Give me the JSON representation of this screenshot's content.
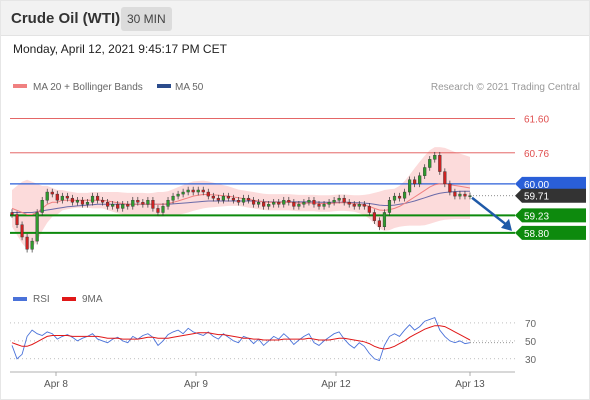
{
  "header": {
    "title": "Crude Oil (WTI)",
    "timeframe": "30 MIN",
    "datetime": "Monday, April 12, 2021 9:45:17 PM CET"
  },
  "legend": {
    "items": [
      {
        "label": "MA 20 + Bollinger Bands",
        "color": "#f08080"
      },
      {
        "label": "MA 50",
        "color": "#2b4c8c"
      }
    ],
    "credit": "Research © 2021 Trading Central"
  },
  "rsi_legend": {
    "items": [
      {
        "label": "RSI",
        "color": "#4a72d9"
      },
      {
        "label": "9MA",
        "color": "#e01818"
      }
    ]
  },
  "colors": {
    "resistance": "#e05050",
    "pivot": "#2a5fd8",
    "support": "#0d8a0d",
    "last_price_bg": "#333333",
    "bollinger_fill": "#fbd5d5",
    "ma20": "#f08080",
    "ma50": "#6a6aa8",
    "candle_up": "#2e9a2e",
    "candle_down": "#cc2222",
    "arrow": "#1f5aa8"
  },
  "chart_data": [
    {
      "type": "candlestick",
      "title": "Crude Oil (WTI)",
      "timeframe": "30 MIN",
      "x_ticks": [
        "Apr 8",
        "Apr 9",
        "Apr 12",
        "Apr 13"
      ],
      "ylim": [
        57.6,
        62.1
      ],
      "levels": [
        {
          "value": 61.6,
          "label": "61.60",
          "kind": "resistance"
        },
        {
          "value": 60.76,
          "label": "60.76",
          "kind": "resistance"
        },
        {
          "value": 60.0,
          "label": "60.00",
          "kind": "pivot"
        },
        {
          "value": 59.71,
          "label": "59.71",
          "kind": "last"
        },
        {
          "value": 59.23,
          "label": "59.23",
          "kind": "support"
        },
        {
          "value": 58.8,
          "label": "58.80",
          "kind": "support"
        }
      ],
      "forecast": {
        "from": 59.71,
        "to": 58.8,
        "direction": "down"
      },
      "closes": [
        59.25,
        59.0,
        58.7,
        58.4,
        58.6,
        59.3,
        59.6,
        59.8,
        59.75,
        59.6,
        59.7,
        59.65,
        59.55,
        59.6,
        59.5,
        59.55,
        59.7,
        59.6,
        59.55,
        59.45,
        59.5,
        59.4,
        59.5,
        59.45,
        59.6,
        59.55,
        59.5,
        59.6,
        59.4,
        59.3,
        59.45,
        59.6,
        59.7,
        59.75,
        59.8,
        59.85,
        59.8,
        59.85,
        59.8,
        59.7,
        59.65,
        59.6,
        59.7,
        59.65,
        59.6,
        59.55,
        59.65,
        59.6,
        59.5,
        59.55,
        59.45,
        59.5,
        59.55,
        59.5,
        59.6,
        59.55,
        59.45,
        59.5,
        59.55,
        59.6,
        59.5,
        59.45,
        59.5,
        59.55,
        59.6,
        59.65,
        59.55,
        59.5,
        59.45,
        59.5,
        59.45,
        59.3,
        59.1,
        58.95,
        59.3,
        59.6,
        59.7,
        59.65,
        59.8,
        60.1,
        60.0,
        60.2,
        60.4,
        60.6,
        60.7,
        60.3,
        60.0,
        59.8,
        59.7,
        59.75,
        59.7,
        59.71
      ],
      "ma20": [
        59.4,
        59.35,
        59.3,
        59.25,
        59.25,
        59.3,
        59.4,
        59.5,
        59.55,
        59.55,
        59.6,
        59.6,
        59.6,
        59.6,
        59.6,
        59.6,
        59.6,
        59.6,
        59.6,
        59.58,
        59.56,
        59.54,
        59.52,
        59.5,
        59.5,
        59.5,
        59.5,
        59.5,
        59.5,
        59.5,
        59.5,
        59.52,
        59.55,
        59.58,
        59.62,
        59.66,
        59.7,
        59.72,
        59.74,
        59.74,
        59.73,
        59.72,
        59.71,
        59.7,
        59.68,
        59.66,
        59.64,
        59.62,
        59.6,
        59.58,
        59.56,
        59.55,
        59.55,
        59.55,
        59.55,
        59.55,
        59.54,
        59.53,
        59.53,
        59.53,
        59.53,
        59.52,
        59.52,
        59.52,
        59.53,
        59.54,
        59.54,
        59.53,
        59.52,
        59.5,
        59.48,
        59.45,
        59.4,
        59.36,
        59.35,
        59.37,
        59.4,
        59.45,
        59.52,
        59.6,
        59.68,
        59.76,
        59.84,
        59.92,
        59.98,
        60.0,
        60.0,
        59.98,
        59.96,
        59.94,
        59.92,
        59.9
      ],
      "ma50": [
        59.3,
        59.3,
        59.3,
        59.3,
        59.3,
        59.32,
        59.34,
        59.36,
        59.38,
        59.4,
        59.42,
        59.44,
        59.45,
        59.46,
        59.47,
        59.48,
        59.49,
        59.5,
        59.5,
        59.5,
        59.5,
        59.5,
        59.5,
        59.5,
        59.5,
        59.5,
        59.5,
        59.5,
        59.5,
        59.5,
        59.5,
        59.5,
        59.51,
        59.52,
        59.53,
        59.54,
        59.55,
        59.56,
        59.57,
        59.58,
        59.58,
        59.58,
        59.58,
        59.58,
        59.58,
        59.58,
        59.58,
        59.58,
        59.58,
        59.57,
        59.57,
        59.56,
        59.56,
        59.56,
        59.56,
        59.56,
        59.56,
        59.56,
        59.56,
        59.56,
        59.56,
        59.55,
        59.55,
        59.55,
        59.55,
        59.55,
        59.55,
        59.55,
        59.54,
        59.54,
        59.53,
        59.52,
        59.5,
        59.48,
        59.47,
        59.47,
        59.48,
        59.5,
        59.52,
        59.55,
        59.58,
        59.62,
        59.66,
        59.7,
        59.74,
        59.77,
        59.79,
        59.8,
        59.81,
        59.82,
        59.82,
        59.82
      ],
      "bb_width": [
        0.45,
        0.6,
        0.75,
        0.85,
        0.8,
        0.7,
        0.55,
        0.45,
        0.35,
        0.3,
        0.25,
        0.22,
        0.2,
        0.18,
        0.18,
        0.18,
        0.2,
        0.2,
        0.2,
        0.22,
        0.24,
        0.26,
        0.27,
        0.28,
        0.28,
        0.28,
        0.28,
        0.27,
        0.28,
        0.3,
        0.3,
        0.3,
        0.32,
        0.34,
        0.35,
        0.36,
        0.36,
        0.35,
        0.34,
        0.32,
        0.3,
        0.28,
        0.26,
        0.24,
        0.22,
        0.2,
        0.2,
        0.2,
        0.2,
        0.2,
        0.2,
        0.2,
        0.2,
        0.2,
        0.2,
        0.2,
        0.2,
        0.2,
        0.2,
        0.2,
        0.2,
        0.2,
        0.2,
        0.2,
        0.2,
        0.2,
        0.2,
        0.2,
        0.2,
        0.22,
        0.25,
        0.3,
        0.38,
        0.45,
        0.5,
        0.5,
        0.48,
        0.5,
        0.55,
        0.62,
        0.7,
        0.78,
        0.85,
        0.9,
        0.92,
        0.9,
        0.88,
        0.85,
        0.82,
        0.8,
        0.78,
        0.76
      ]
    },
    {
      "type": "line",
      "title": "",
      "series": [
        {
          "name": "RSI",
          "values": [
            45,
            30,
            35,
            55,
            62,
            58,
            56,
            60,
            58,
            52,
            55,
            57,
            54,
            50,
            53,
            55,
            58,
            52,
            50,
            48,
            52,
            54,
            50,
            48,
            55,
            52,
            56,
            58,
            54,
            45,
            50,
            57,
            60,
            62,
            58,
            64,
            60,
            58,
            56,
            60,
            55,
            52,
            58,
            54,
            50,
            48,
            55,
            53,
            47,
            52,
            45,
            50,
            55,
            52,
            58,
            53,
            46,
            51,
            55,
            58,
            48,
            45,
            50,
            54,
            58,
            60,
            52,
            46,
            42,
            48,
            44,
            36,
            30,
            28,
            45,
            55,
            58,
            55,
            62,
            68,
            62,
            66,
            72,
            74,
            76,
            62,
            55,
            50,
            48,
            50,
            47,
            48
          ]
        },
        {
          "name": "9MA",
          "values": [
            48,
            46,
            44,
            44,
            46,
            49,
            52,
            55,
            56,
            56,
            56,
            56,
            55,
            55,
            55,
            55,
            55,
            55,
            54,
            53,
            53,
            53,
            52,
            52,
            52,
            52,
            53,
            54,
            54,
            53,
            53,
            53,
            54,
            55,
            56,
            57,
            58,
            59,
            59,
            59,
            58,
            57,
            57,
            56,
            55,
            54,
            53,
            53,
            52,
            52,
            51,
            51,
            51,
            51,
            52,
            52,
            52,
            52,
            52,
            53,
            52,
            51,
            51,
            51,
            52,
            53,
            53,
            52,
            51,
            50,
            49,
            47,
            44,
            42,
            41,
            42,
            44,
            47,
            50,
            54,
            57,
            60,
            63,
            65,
            67,
            67,
            66,
            63,
            60,
            57,
            54,
            51
          ]
        }
      ],
      "y_ticks": [
        30,
        50,
        70
      ],
      "ylim": [
        22,
        80
      ]
    }
  ]
}
